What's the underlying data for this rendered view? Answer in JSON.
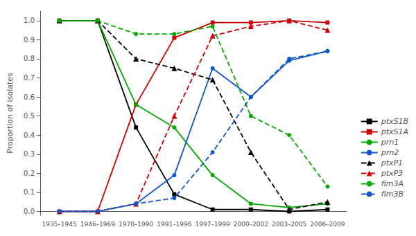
{
  "chart_data": {
    "type": "line",
    "categories": [
      "1935–1945",
      "1946–1969",
      "1970–1990",
      "1991–1996",
      "1997–1999",
      "2000–2002",
      "2003–2005",
      "2006–2009"
    ],
    "series": [
      {
        "name": "ptxS1B",
        "color": "#000000",
        "line_style": "solid",
        "marker": "square",
        "values": [
          1.0,
          1.0,
          0.44,
          0.09,
          0.01,
          0.01,
          0.0,
          0.01
        ]
      },
      {
        "name": "ptxS1A",
        "color": "#cc0000",
        "line_style": "solid",
        "marker": "square",
        "values": [
          0.0,
          0.0,
          0.56,
          0.91,
          0.99,
          0.99,
          1.0,
          0.99
        ]
      },
      {
        "name": "prn1",
        "color": "#00aa00",
        "line_style": "solid",
        "marker": "circle",
        "values": [
          1.0,
          1.0,
          0.56,
          0.44,
          0.19,
          0.04,
          0.02,
          0.04
        ]
      },
      {
        "name": "prn2",
        "color": "#1155cc",
        "line_style": "solid",
        "marker": "circle",
        "values": [
          0.0,
          0.0,
          0.04,
          0.19,
          0.75,
          0.6,
          0.79,
          0.84
        ]
      },
      {
        "name": "ptxP1",
        "color": "#000000",
        "line_style": "dashed",
        "marker": "triangle",
        "values": [
          1.0,
          1.0,
          0.8,
          0.75,
          0.69,
          0.31,
          0.01,
          0.05
        ]
      },
      {
        "name": "ptxP3",
        "color": "#cc0000",
        "line_style": "dashed",
        "marker": "triangle",
        "values": [
          0.0,
          0.0,
          0.04,
          0.5,
          0.92,
          0.97,
          1.0,
          0.95
        ]
      },
      {
        "name": "fim3A",
        "color": "#00aa00",
        "line_style": "dashed",
        "marker": "circle",
        "values": [
          1.0,
          1.0,
          0.93,
          0.93,
          0.97,
          0.5,
          0.4,
          0.13
        ]
      },
      {
        "name": "fim3B",
        "color": "#1155cc",
        "line_style": "dashed",
        "marker": "circle",
        "values": [
          0.0,
          0.0,
          0.04,
          0.07,
          0.31,
          0.6,
          0.8,
          0.84
        ]
      }
    ],
    "ylabel": "Proportion of isolates",
    "ylim": [
      -0.02,
      1.05
    ],
    "yticks": [
      {
        "value": 0.0,
        "label": "0.0"
      },
      0.1,
      0.2,
      0.3,
      0.4,
      0.5,
      0.6,
      0.7,
      0.8,
      0.9,
      {
        "value": 1.0,
        "label": "1.0"
      }
    ],
    "grid": false,
    "legend": "lower right"
  }
}
